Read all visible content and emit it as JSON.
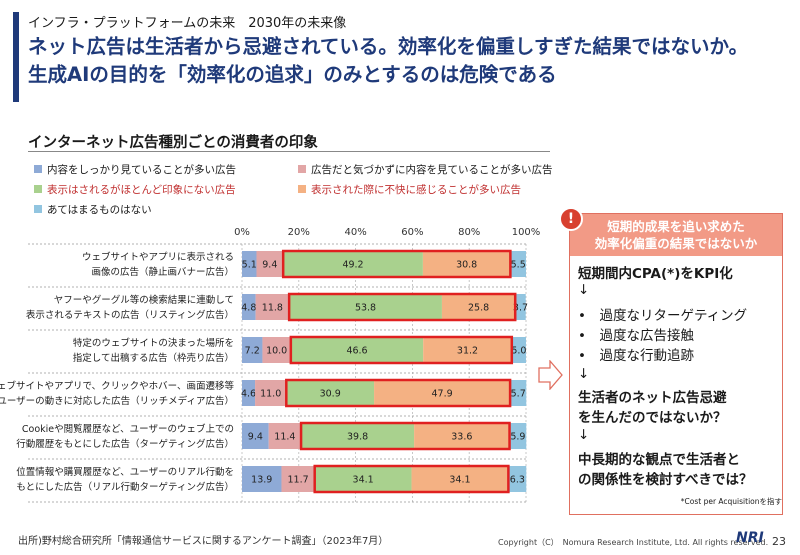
{
  "header": {
    "crumb": "インフラ・プラットフォームの未来　2030年の未来像",
    "headline_1": "ネット広告は生活者から忌避されている。効率化を偏重しすぎた結果ではないか。",
    "headline_2": "生成AIの目的を「効率化の追求」のみとするのは危険である"
  },
  "section_title": "インターネット広告種別ごとの消費者の印象",
  "legend": [
    {
      "label": "内容をしっかり見ていることが多い広告",
      "color": "#8eaad6",
      "red": false
    },
    {
      "label": "広告だと気づかずに内容を見ていることが多い広告",
      "color": "#e2a6a6",
      "red": false
    },
    {
      "label": "表示はされるがほとんど印象にない広告",
      "color": "#a9d18e",
      "red": true
    },
    {
      "label": "表示された際に不快に感じることが多い広告",
      "color": "#f4b183",
      "red": true
    },
    {
      "label": "あてはまるものはない",
      "color": "#92c5e0",
      "red": false
    }
  ],
  "chart_data": {
    "type": "bar",
    "stacked": true,
    "orientation": "horizontal",
    "xlim": [
      0,
      100
    ],
    "x_ticks": [
      "0%",
      "20%",
      "40%",
      "60%",
      "80%",
      "100%"
    ],
    "categories": [
      [
        "ウェブサイトやアプリに表示される",
        "画像の広告（静止画バナー広告）"
      ],
      [
        "ヤフーやグーグル等の検索結果に連動して",
        "表示されるテキストの広告（リスティング広告）"
      ],
      [
        "特定のウェブサイトの決まった場所を",
        "指定して出稿する広告（枠売り広告）"
      ],
      [
        "ウェブサイトやアプリで、クリックやホバー、画面遷移等",
        "ユーザーの動きに対応した広告（リッチメディア広告）"
      ],
      [
        "Cookieや閲覧履歴など、ユーザーのウェブ上での",
        "行動履歴をもとにした広告（ターゲティング広告）"
      ],
      [
        "位置情報や購買履歴など、ユーザーのリアル行動を",
        "もとにした広告（リアル行動ターゲティング広告）"
      ]
    ],
    "series": [
      {
        "name": "内容をしっかり見ていることが多い広告",
        "color": "#8eaad6",
        "values": [
          5.1,
          4.8,
          7.2,
          4.6,
          9.4,
          13.9
        ]
      },
      {
        "name": "広告だと気づかずに内容を見ていることが多い広告",
        "color": "#e2a6a6",
        "values": [
          9.4,
          11.8,
          10.0,
          11.0,
          11.4,
          11.7
        ]
      },
      {
        "name": "表示はされるがほとんど印象にない広告",
        "color": "#a9d18e",
        "values": [
          49.2,
          53.8,
          46.6,
          30.9,
          39.8,
          34.1
        ]
      },
      {
        "name": "表示された際に不快に感じることが多い広告",
        "color": "#f4b183",
        "values": [
          30.8,
          25.8,
          31.2,
          47.9,
          33.6,
          34.1
        ]
      },
      {
        "name": "あてはまるものはない",
        "color": "#92c5e0",
        "values": [
          5.5,
          3.7,
          5.0,
          5.7,
          5.9,
          6.3
        ]
      }
    ],
    "highlight_color": "#e02020"
  },
  "panel": {
    "alert_icon": "!",
    "head_1": "短期的成果を追い求めた",
    "head_2": "効率化偏重の結果ではないか",
    "line_1": "短期間内CPA(*)をKPI化",
    "arrow": "↓",
    "bullet_1": "•　過度なリターゲティング",
    "bullet_2": "•　過度な広告接触",
    "bullet_3": "•　過度な行動追跡",
    "line_2a": "生活者のネット広告忌避",
    "line_2b": "を生んだのではないか？",
    "line_3a": "中長期的な観点で生活者と",
    "line_3b": "の関係性を検討すべきでは？",
    "note": "*Cost per Acquisitionを指す"
  },
  "footer": {
    "source": "出所)野村総合研究所「情報通信サービスに関するアンケート調査」（2023年7月）",
    "copyright": "Copyright（C）　Nomura Research Institute, Ltd. All rights reserved.",
    "logo": "NRI",
    "page": "23"
  }
}
